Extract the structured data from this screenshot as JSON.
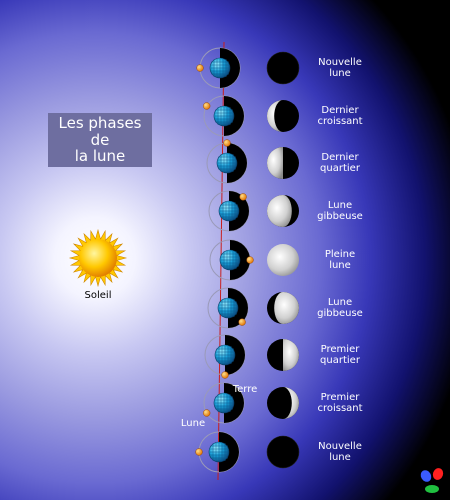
{
  "title": {
    "line1": "Les phases",
    "line2": "de",
    "line3": "la lune"
  },
  "sun_label": "Soleil",
  "earth_label": "Terre",
  "moon_label": "Lune",
  "phases": [
    {
      "label_line1": "Nouvelle",
      "label_line2": "lune"
    },
    {
      "label_line1": "Dernier",
      "label_line2": "croissant"
    },
    {
      "label_line1": "Dernier",
      "label_line2": "quartier"
    },
    {
      "label_line1": "Lune",
      "label_line2": "gibbeuse"
    },
    {
      "label_line1": "Pleine",
      "label_line2": "lune"
    },
    {
      "label_line1": "Lune",
      "label_line2": "gibbeuse"
    },
    {
      "label_line1": "Premier",
      "label_line2": "quartier"
    },
    {
      "label_line1": "Premier",
      "label_line2": "croissant"
    },
    {
      "label_line1": "Nouvelle",
      "label_line2": "lune"
    }
  ],
  "colors": {
    "sun": "#ffc800",
    "earth": "#1aa0d8",
    "moon_orbit_marker": "#ff9a00",
    "axis_line": "#c81e1e",
    "title_box": "#6e6ea0"
  }
}
